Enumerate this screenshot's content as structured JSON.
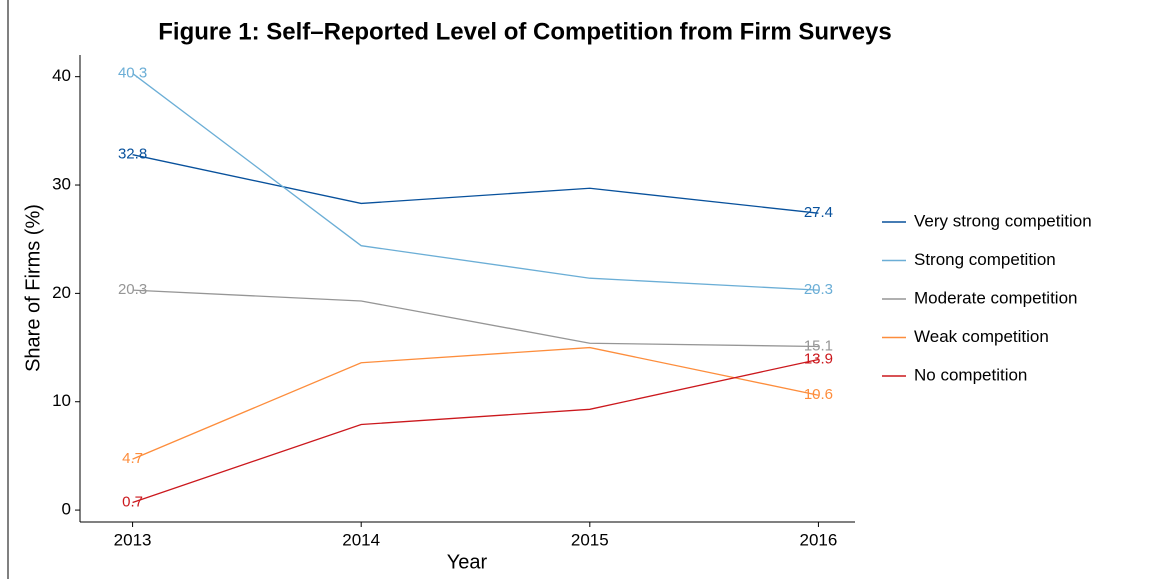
{
  "chart_data": {
    "type": "line",
    "title": "Figure 1: Self–Reported Level of Competition from Firm Surveys",
    "x_label": "Year",
    "y_label": "Share of Firms (%)",
    "x": [
      2013,
      2014,
      2015,
      2016
    ],
    "xlim": [
      2012.77,
      2016.16
    ],
    "xticks": [
      2013,
      2014,
      2015,
      2016
    ],
    "ylim": [
      -1.1,
      42
    ],
    "yticks": [
      0,
      10,
      20,
      30,
      40
    ],
    "grid": false,
    "legend": "right",
    "series": [
      {
        "name": "Very strong competition",
        "color": "#08519c",
        "values": [
          32.8,
          28.3,
          29.7,
          27.4
        ]
      },
      {
        "name": "Strong competition",
        "color": "#6baed6",
        "values": [
          40.3,
          24.4,
          21.4,
          20.3
        ]
      },
      {
        "name": "Moderate competition",
        "color": "#969696",
        "values": [
          20.3,
          19.3,
          15.4,
          15.1
        ]
      },
      {
        "name": "Weak competition",
        "color": "#fd8d3c",
        "values": [
          4.7,
          13.6,
          15.0,
          10.6
        ]
      },
      {
        "name": "No competition",
        "color": "#cb181d",
        "values": [
          0.7,
          7.9,
          9.3,
          13.9
        ]
      }
    ]
  }
}
